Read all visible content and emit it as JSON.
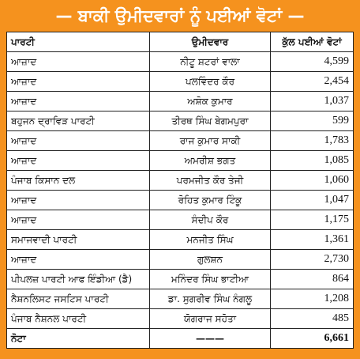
{
  "header": {
    "title": "— ਬਾਕੀ ਉਮੀਦਵਾਰਾਂ ਨੂੰ ਪਈਆਂ ਵੋਟਾਂ —"
  },
  "table": {
    "columns": [
      "ਪਾਰਟੀ",
      "ਉਮੀਦਵਾਰ",
      "ਕੁੱਲ ਪਈਆਂ ਵੋਟਾਂ"
    ],
    "rows": [
      [
        "ਆਜ਼ਾਦ",
        "ਨੀਟੂ ਸ਼ਟਰਾਂ ਵਾਲਾ",
        "4,599"
      ],
      [
        "ਆਜ਼ਾਦ",
        "ਪਲਵਿੰਦਰ ਕੌਰ",
        "2,454"
      ],
      [
        "ਆਜ਼ਾਦ",
        "ਅਸ਼ੋਕ ਕੁਮਾਰ",
        "1,037"
      ],
      [
        "ਬਹੁਜਨ ਦ੍ਰਾਵਿੜ ਪਾਰਟੀ",
        "ਤੀਰਥ ਸਿੰਘ ਬੇਗਮਪੁਰਾ",
        "599"
      ],
      [
        "ਆਜ਼ਾਦ",
        "ਰਾਜ ਕੁਮਾਰ ਸਾਕੀ",
        "1,783"
      ],
      [
        "ਆਜ਼ਾਦ",
        "ਅਮਰੀਸ਼ ਭਗਤ",
        "1,085"
      ],
      [
        "ਪੰਜਾਬ ਕਿਸਾਨ ਦਲ",
        "ਪਰਮਜੀਤ ਕੌਰ ਤੇਜੀ",
        "1,060"
      ],
      [
        "ਆਜ਼ਾਦ",
        "ਰੋਹਿਤ ਕੁਮਾਰ ਟਿੰਕੂ",
        "1,047"
      ],
      [
        "ਆਜ਼ਾਦ",
        "ਸੰਦੀਪ ਕੌਰ",
        "1,175"
      ],
      [
        "ਸਮਾਜਵਾਦੀ ਪਾਰਟੀ",
        "ਮਨਜੀਤ ਸਿੰਘ",
        "1,361"
      ],
      [
        "ਆਜ਼ਾਦ",
        "ਗੁਲਸ਼ਨ",
        "2,730"
      ],
      [
        "ਪੀਪਲਜ਼ ਪਾਰਟੀ ਆਫ ਇੰਡੀਆ (ਡੈ)",
        "ਮਨਿੰਦਰ ਸਿੰਘ ਭਾਟੀਆ",
        "864"
      ],
      [
        "ਨੈਸ਼ਨਲਿਸਟ ਜਸਟਿਸ ਪਾਰਟੀ",
        "ਡਾ. ਸੁਗਰੀਵ ਸਿੰਘ ਨੰਗਲੂ",
        "1,208"
      ],
      [
        "ਪੰਜਾਬ ਨੈਸ਼ਨਲ ਪਾਰਟੀ",
        "ਯੋਗਰਾਜ ਸਹੋਤਾ",
        "485"
      ],
      [
        "ਨੋਟਾ",
        "———",
        "6,661"
      ]
    ]
  }
}
